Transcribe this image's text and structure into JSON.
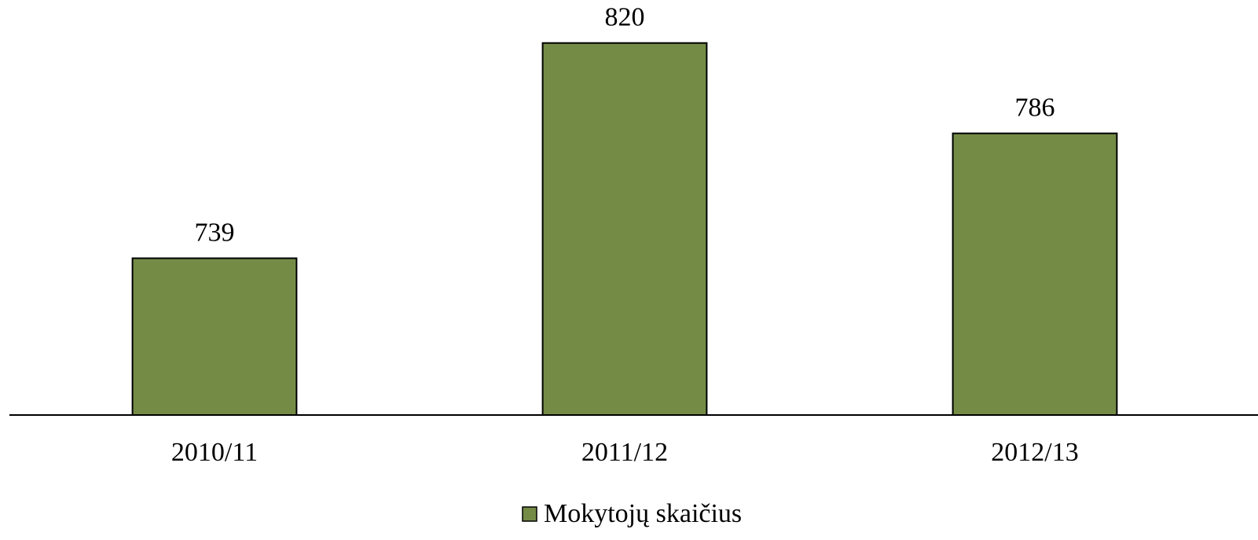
{
  "chart_data": {
    "type": "bar",
    "categories": [
      "2010/11",
      "2011/12",
      "2012/13"
    ],
    "series": [
      {
        "name": "Mokytojų skaičius",
        "color": "#748b46",
        "values": [
          739,
          820,
          786
        ]
      }
    ],
    "ylim": [
      680,
      835
    ],
    "legend": "bottom"
  }
}
